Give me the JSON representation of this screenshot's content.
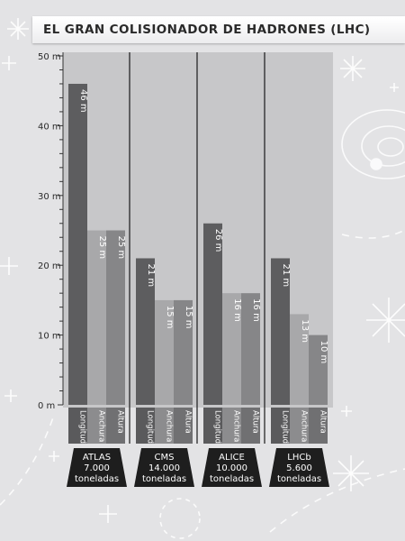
{
  "title": "El gran colisionador de hadrones (LHC)",
  "chart_data": {
    "type": "bar",
    "title": "El gran colisionador de hadrones (LHC)",
    "ylim": [
      0,
      50
    ],
    "y_ticks": [
      "0 m",
      "10 m",
      "20 m",
      "30 m",
      "40 m",
      "50 m"
    ],
    "grid": false,
    "series_labels": [
      "Longitud",
      "Anchura",
      "Altura"
    ],
    "groups": [
      {
        "lines": [
          "ATLAS",
          "7.000",
          "toneladas"
        ],
        "values": [
          46,
          25,
          25
        ],
        "value_labels": [
          "46 m",
          "25 m",
          "25 m"
        ]
      },
      {
        "lines": [
          "CMS",
          "14.000",
          "toneladas"
        ],
        "values": [
          21,
          15,
          15
        ],
        "value_labels": [
          "21 m",
          "15 m",
          "15 m"
        ]
      },
      {
        "lines": [
          "ALICE",
          "10.000",
          "toneladas"
        ],
        "values": [
          26,
          16,
          16
        ],
        "value_labels": [
          "26 m",
          "16 m",
          "16 m"
        ]
      },
      {
        "lines": [
          "LHCb",
          "5.600",
          "toneladas"
        ],
        "values": [
          21,
          13,
          10
        ],
        "value_labels": [
          "21 m",
          "13 m",
          "10 m"
        ]
      }
    ],
    "colors": {
      "panel": "#c7c7c9",
      "longitud": "#5d5d5f",
      "anchura": "#a8a8aa",
      "altura": "#868688",
      "label_box": "#1e1e1e",
      "dim_strip_1": "#5a5a5c",
      "dim_strip_2": "#8c8c8e",
      "dim_strip_3": "#707072"
    }
  }
}
